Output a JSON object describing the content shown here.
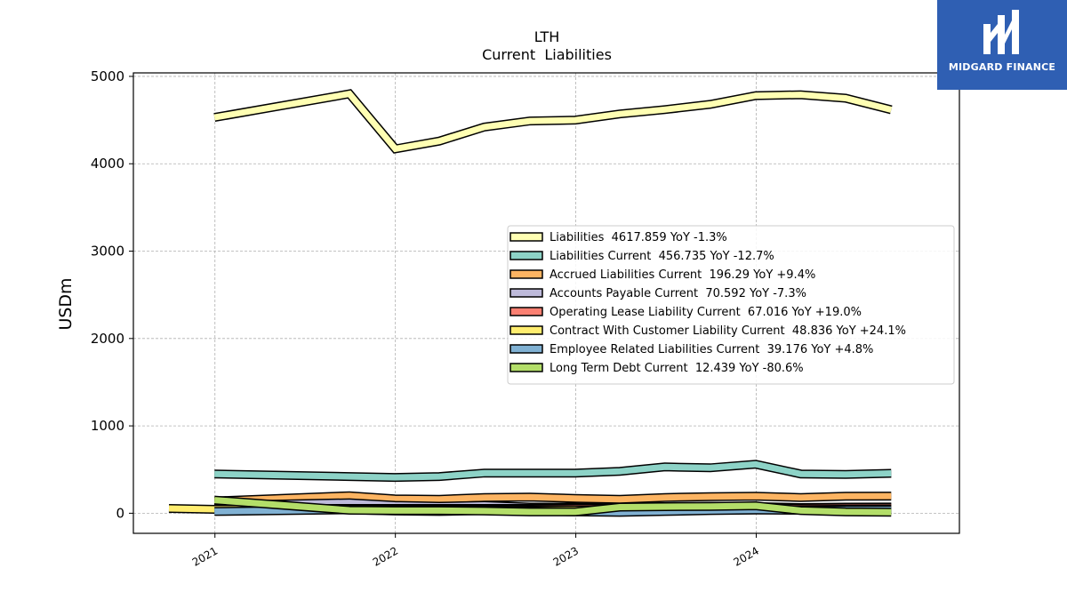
{
  "logo": {
    "text": "MIDGARD FINANCE"
  },
  "chart_data": {
    "type": "line",
    "title": "LTH",
    "subtitle": "Current  Liabilities",
    "xlabel": "",
    "ylabel": "USDm",
    "xlim": [
      "2020-07-20",
      "2025-02-15"
    ],
    "ylim": [
      -230,
      5040
    ],
    "xticks": [
      {
        "date": "2021-01-01",
        "label": "2021"
      },
      {
        "date": "2022-01-01",
        "label": "2022"
      },
      {
        "date": "2023-01-01",
        "label": "2023"
      },
      {
        "date": "2024-01-01",
        "label": "2024"
      }
    ],
    "yticks": [
      0,
      1000,
      2000,
      3000,
      4000,
      5000
    ],
    "grid": true,
    "legend_position": "center-right",
    "series": [
      {
        "name": "Liabilities",
        "legend": "Liabilities  4617.859 YoY -1.3%",
        "color": "#ffffb3",
        "points": [
          [
            "2020-12-31",
            4530
          ],
          [
            "2021-09-30",
            4800
          ],
          [
            "2022-01-01",
            4170
          ],
          [
            "2022-03-31",
            4260
          ],
          [
            "2022-06-30",
            4420
          ],
          [
            "2022-09-30",
            4490
          ],
          [
            "2022-12-31",
            4500
          ],
          [
            "2023-03-31",
            4570
          ],
          [
            "2023-06-30",
            4620
          ],
          [
            "2023-09-30",
            4680
          ],
          [
            "2023-12-31",
            4780
          ],
          [
            "2024-03-31",
            4790
          ],
          [
            "2024-06-30",
            4750
          ],
          [
            "2024-09-30",
            4618
          ]
        ]
      },
      {
        "name": "Liabilities Current",
        "legend": "Liabilities Current  456.735 YoY -12.7%",
        "color": "#8dd3c7",
        "points": [
          [
            "2020-12-31",
            450
          ],
          [
            "2021-09-30",
            420
          ],
          [
            "2021-12-31",
            410
          ],
          [
            "2022-03-31",
            420
          ],
          [
            "2022-06-30",
            460
          ],
          [
            "2022-09-30",
            460
          ],
          [
            "2022-12-31",
            460
          ],
          [
            "2023-03-31",
            480
          ],
          [
            "2023-06-30",
            530
          ],
          [
            "2023-09-30",
            520
          ],
          [
            "2023-12-31",
            560
          ],
          [
            "2024-03-31",
            450
          ],
          [
            "2024-06-30",
            445
          ],
          [
            "2024-09-30",
            457
          ]
        ]
      },
      {
        "name": "Accrued Liabilities Current",
        "legend": "Accrued Liabilities Current  196.29 YoY +9.4%",
        "color": "#fdb462",
        "points": [
          [
            "2020-12-31",
            140
          ],
          [
            "2021-09-30",
            200
          ],
          [
            "2021-12-31",
            165
          ],
          [
            "2022-03-31",
            160
          ],
          [
            "2022-06-30",
            180
          ],
          [
            "2022-09-30",
            185
          ],
          [
            "2022-12-31",
            170
          ],
          [
            "2023-03-31",
            160
          ],
          [
            "2023-06-30",
            180
          ],
          [
            "2023-09-30",
            190
          ],
          [
            "2023-12-31",
            195
          ],
          [
            "2024-03-31",
            180
          ],
          [
            "2024-06-30",
            195
          ],
          [
            "2024-09-30",
            196
          ]
        ]
      },
      {
        "name": "Accounts Payable Current",
        "legend": "Accounts Payable Current  70.592 YoY -7.3%",
        "color": "#bebada",
        "points": [
          [
            "2020-12-31",
            90
          ],
          [
            "2021-09-30",
            120
          ],
          [
            "2021-12-31",
            90
          ],
          [
            "2022-03-31",
            80
          ],
          [
            "2022-06-30",
            90
          ],
          [
            "2022-09-30",
            70
          ],
          [
            "2022-12-31",
            70
          ],
          [
            "2023-03-31",
            60
          ],
          [
            "2023-06-30",
            75
          ],
          [
            "2023-09-30",
            80
          ],
          [
            "2023-12-31",
            76
          ],
          [
            "2024-03-31",
            65
          ],
          [
            "2024-06-30",
            70
          ],
          [
            "2024-09-30",
            71
          ]
        ]
      },
      {
        "name": "Operating Lease Liability Current",
        "legend": "Operating Lease Liability Current  67.016 YoY +19.0%",
        "color": "#fb8072",
        "points": [
          [
            "2020-12-31",
            50
          ],
          [
            "2021-09-30",
            55
          ],
          [
            "2021-12-31",
            55
          ],
          [
            "2022-03-31",
            55
          ],
          [
            "2022-06-30",
            55
          ],
          [
            "2022-09-30",
            55
          ],
          [
            "2022-12-31",
            56
          ],
          [
            "2023-03-31",
            56
          ],
          [
            "2023-06-30",
            57
          ],
          [
            "2023-09-30",
            57
          ],
          [
            "2023-12-31",
            56
          ],
          [
            "2024-03-31",
            60
          ],
          [
            "2024-06-30",
            64
          ],
          [
            "2024-09-30",
            67
          ]
        ]
      },
      {
        "name": "Contract With Customer Liability Current",
        "legend": "Contract With Customer Liability Current  48.836 YoY +24.1%",
        "color": "#ffed6f",
        "points": [
          [
            "2020-09-30",
            55
          ],
          [
            "2020-12-31",
            45
          ],
          [
            "2021-09-30",
            40
          ],
          [
            "2021-12-31",
            40
          ],
          [
            "2022-03-31",
            40
          ],
          [
            "2022-06-30",
            42
          ],
          [
            "2022-09-30",
            40
          ],
          [
            "2022-12-31",
            38
          ],
          [
            "2023-03-31",
            40
          ],
          [
            "2023-06-30",
            40
          ],
          [
            "2023-09-30",
            38
          ],
          [
            "2023-12-31",
            39
          ],
          [
            "2024-03-31",
            42
          ],
          [
            "2024-06-30",
            45
          ],
          [
            "2024-09-30",
            49
          ]
        ]
      },
      {
        "name": "Employee Related Liabilities Current",
        "legend": "Employee Related Liabilities Current  39.176 YoY +4.8%",
        "color": "#80b1d3",
        "points": [
          [
            "2020-12-31",
            20
          ],
          [
            "2021-09-30",
            40
          ],
          [
            "2021-12-31",
            25
          ],
          [
            "2022-03-31",
            20
          ],
          [
            "2022-06-30",
            30
          ],
          [
            "2022-09-30",
            25
          ],
          [
            "2022-12-31",
            15
          ],
          [
            "2023-03-31",
            10
          ],
          [
            "2023-06-30",
            20
          ],
          [
            "2023-09-30",
            30
          ],
          [
            "2023-12-31",
            37
          ],
          [
            "2024-03-31",
            35
          ],
          [
            "2024-06-30",
            38
          ],
          [
            "2024-09-30",
            39
          ]
        ]
      },
      {
        "name": "Long Term Debt Current",
        "legend": "Long Term Debt Current  12.439 YoY -80.6%",
        "color": "#b3de69",
        "points": [
          [
            "2020-12-31",
            150
          ],
          [
            "2021-09-30",
            35
          ],
          [
            "2021-12-31",
            30
          ],
          [
            "2022-03-31",
            30
          ],
          [
            "2022-06-30",
            25
          ],
          [
            "2022-09-30",
            15
          ],
          [
            "2022-12-31",
            15
          ],
          [
            "2023-03-31",
            70
          ],
          [
            "2023-06-30",
            75
          ],
          [
            "2023-09-30",
            78
          ],
          [
            "2023-12-31",
            85
          ],
          [
            "2024-03-31",
            30
          ],
          [
            "2024-06-30",
            15
          ],
          [
            "2024-09-30",
            12
          ]
        ]
      }
    ]
  }
}
